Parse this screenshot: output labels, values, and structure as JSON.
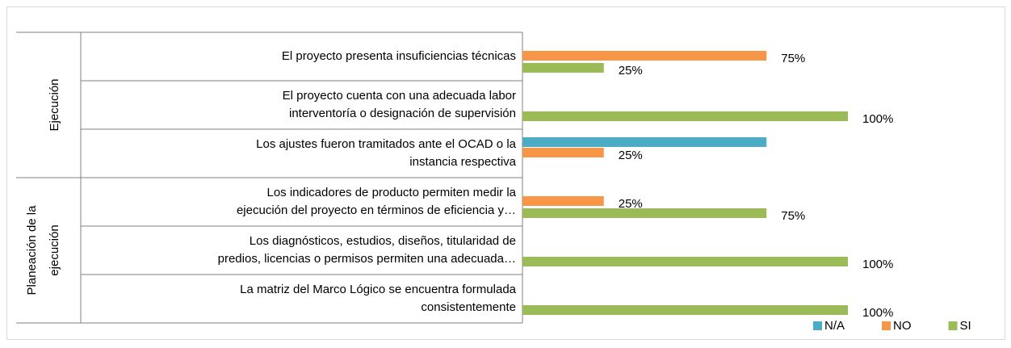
{
  "chart_data": {
    "type": "hbar",
    "categories": [
      [
        "El proyecto presenta insuficiencias técnicas"
      ],
      [
        "El proyecto cuenta con una adecuada labor",
        "interventoría o designación de supervisión"
      ],
      [
        "Los ajustes fueron tramitados ante el OCAD o la",
        "instancia respectiva"
      ],
      [
        "Los indicadores de producto permiten medir la",
        "ejecución del proyecto en términos de eficiencia y…"
      ],
      [
        "Los diagnósticos, estudios, diseños, titularidad de",
        "predios, licencias o permisos permiten una adecuada…"
      ],
      [
        "La matriz del Marco Lógico se encuentra formulada",
        "consistentemente"
      ]
    ],
    "groups": [
      {
        "label": [
          "Ejecución"
        ],
        "span": 3
      },
      {
        "label": [
          "Planeación de la",
          "ejecución"
        ],
        "span": 3
      }
    ],
    "series": [
      {
        "name": "N/A",
        "color": "#4bacc6",
        "values": [
          null,
          null,
          75,
          null,
          null,
          null
        ],
        "value_labels": [
          null,
          null,
          null,
          null,
          null,
          null
        ]
      },
      {
        "name": "NO",
        "color": "#f79646",
        "values": [
          75,
          null,
          25,
          25,
          null,
          null
        ],
        "value_labels": [
          "75%",
          null,
          "25%",
          "25%",
          null,
          null
        ]
      },
      {
        "name": "SI",
        "color": "#9bbb59",
        "values": [
          25,
          100,
          null,
          75,
          100,
          100
        ],
        "value_labels": [
          "25%",
          "100%",
          null,
          "75%",
          "100%",
          "100%"
        ]
      }
    ],
    "xlim": [
      0,
      100
    ],
    "legend": "bottom-right"
  }
}
